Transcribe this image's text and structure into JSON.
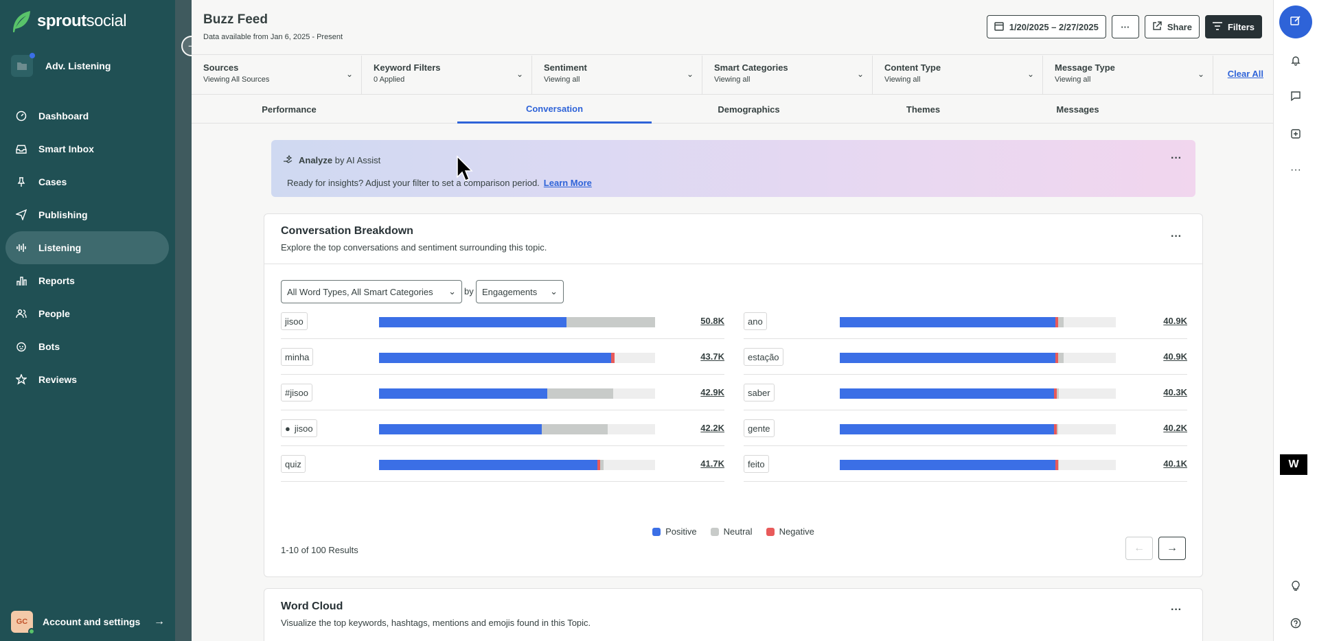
{
  "brand": {
    "name_bold": "sprout",
    "name_light": "social"
  },
  "workspace": {
    "label": "Adv. Listening"
  },
  "nav": [
    {
      "label": "Dashboard",
      "icon": "dashboard-icon"
    },
    {
      "label": "Smart Inbox",
      "icon": "inbox-icon"
    },
    {
      "label": "Cases",
      "icon": "pin-icon"
    },
    {
      "label": "Publishing",
      "icon": "send-icon"
    },
    {
      "label": "Listening",
      "icon": "waveform-icon"
    },
    {
      "label": "Reports",
      "icon": "bar-chart-icon"
    },
    {
      "label": "People",
      "icon": "people-icon"
    },
    {
      "label": "Bots",
      "icon": "bot-icon"
    },
    {
      "label": "Reviews",
      "icon": "star-icon"
    }
  ],
  "account": {
    "initials": "GC",
    "label": "Account and settings"
  },
  "header": {
    "title": "Buzz Feed",
    "subtitle": "Data available from Jan 6, 2025 - Present",
    "date_range": "1/20/2025 – 2/27/2025",
    "share_label": "Share",
    "filters_label": "Filters"
  },
  "filters": [
    {
      "title": "Sources",
      "sub": "Viewing All Sources"
    },
    {
      "title": "Keyword Filters",
      "sub": "0 Applied"
    },
    {
      "title": "Sentiment",
      "sub": "Viewing all"
    },
    {
      "title": "Smart Categories",
      "sub": "Viewing all"
    },
    {
      "title": "Content Type",
      "sub": "Viewing all"
    },
    {
      "title": "Message Type",
      "sub": "Viewing all"
    }
  ],
  "clear_all": "Clear All",
  "tabs": [
    "Performance",
    "Conversation",
    "Demographics",
    "Themes",
    "Messages"
  ],
  "active_tab": "Conversation",
  "assist": {
    "title_bold": "Analyze",
    "title_rest": "by AI Assist",
    "text": "Ready for insights? Adjust your filter to set a comparison period.",
    "link": "Learn More"
  },
  "breakdown": {
    "title": "Conversation Breakdown",
    "subtitle": "Explore the top conversations and sentiment surrounding this topic.",
    "word_type_select": "All Word Types, All Smart Categories",
    "by_label": "by",
    "metric_select": "Engagements",
    "left_rows": [
      {
        "word": "jisoo",
        "value": "50.8K",
        "pos": 0.68,
        "neu": 0.32,
        "neg": 0.0,
        "person": false
      },
      {
        "word": "minha",
        "value": "43.7K",
        "pos": 0.84,
        "neu": 0.0,
        "neg": 0.012,
        "person": false
      },
      {
        "word": "#jisoo",
        "value": "42.9K",
        "pos": 0.61,
        "neu": 0.24,
        "neg": 0.0,
        "person": false
      },
      {
        "word": "jisoo",
        "value": "42.2K",
        "pos": 0.59,
        "neu": 0.24,
        "neg": 0.0,
        "person": true
      },
      {
        "word": "quiz",
        "value": "41.7K",
        "pos": 0.79,
        "neu": 0.013,
        "neg": 0.01,
        "person": false
      }
    ],
    "right_rows": [
      {
        "word": "ano",
        "value": "40.9K",
        "pos": 0.78,
        "neu": 0.02,
        "neg": 0.005,
        "person": false
      },
      {
        "word": "estação",
        "value": "40.9K",
        "pos": 0.78,
        "neu": 0.02,
        "neg": 0.005,
        "person": false
      },
      {
        "word": "saber",
        "value": "40.3K",
        "pos": 0.775,
        "neu": 0.008,
        "neg": 0.005,
        "person": false
      },
      {
        "word": "gente",
        "value": "40.2K",
        "pos": 0.775,
        "neu": 0.005,
        "neg": 0.005,
        "person": false
      },
      {
        "word": "feito",
        "value": "40.1K",
        "pos": 0.78,
        "neu": 0.003,
        "neg": 0.005,
        "person": false
      }
    ],
    "legend": [
      {
        "label": "Positive",
        "color": "#3b6fe6"
      },
      {
        "label": "Neutral",
        "color": "#c8cbc9"
      },
      {
        "label": "Negative",
        "color": "#e85a5a"
      }
    ],
    "results": "1-10 of 100 Results"
  },
  "word_cloud": {
    "title": "Word Cloud",
    "subtitle": "Visualize the top keywords, hashtags, mentions and emojis found in this Topic."
  }
}
